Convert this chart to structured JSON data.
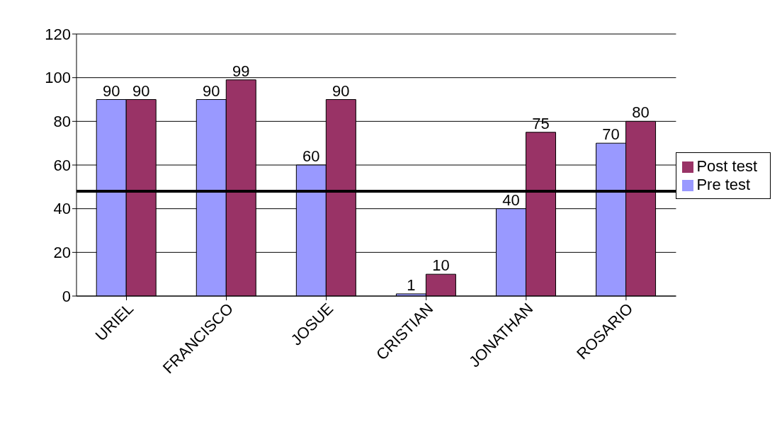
{
  "chart_data": {
    "type": "bar",
    "categories": [
      "URIEL",
      "FRANCISCO",
      "JOSUE",
      "CRISTIAN",
      "JONATHAN",
      "ROSARIO"
    ],
    "series": [
      {
        "name": "Pre test",
        "color": "#9999ff",
        "values": [
          90,
          90,
          60,
          1,
          40,
          70
        ]
      },
      {
        "name": "Post test",
        "color": "#993366",
        "values": [
          90,
          99,
          90,
          10,
          75,
          80
        ]
      }
    ],
    "ylim": [
      0,
      120
    ],
    "yticks": [
      0,
      20,
      40,
      60,
      80,
      100,
      120
    ],
    "grid": "y",
    "legend": "right",
    "data_labels": true,
    "ref_lines": [
      {
        "axis": "y",
        "value": 48,
        "color": "#000000",
        "line_style": "solid"
      }
    ]
  }
}
